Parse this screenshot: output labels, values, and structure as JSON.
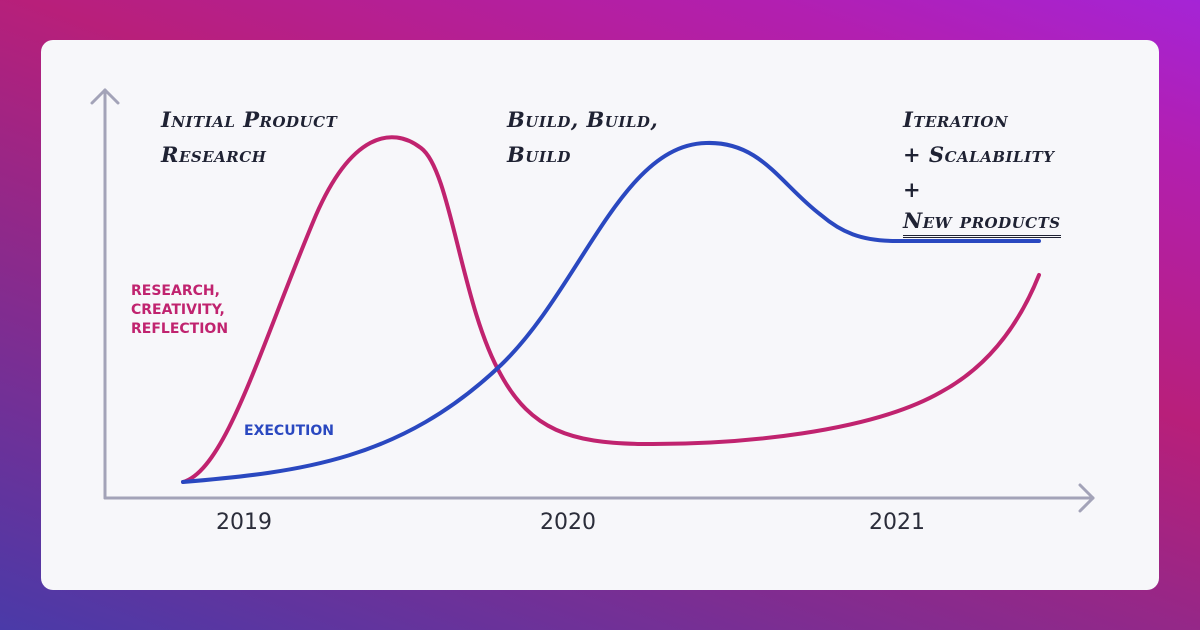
{
  "phases": {
    "initial": {
      "line1": "Initial Product",
      "line2": "Research"
    },
    "build": {
      "line1": "Build, Build,",
      "line2": "Build"
    },
    "iteration": {
      "line1": "Iteration",
      "line2": "+ Scalability",
      "line3_prefix": "+ ",
      "line3_underlined": "New products"
    }
  },
  "series": {
    "research": {
      "label_lines": [
        "RESEARCH,",
        "CREATIVITY,",
        "REFLECTION"
      ],
      "color": "#c0236f"
    },
    "execution": {
      "label": "EXECUTION",
      "color": "#2a48c0"
    }
  },
  "x_axis": {
    "years": [
      "2019",
      "2020",
      "2021"
    ]
  },
  "colors": {
    "axis": "#a3a3b8",
    "card_background": "#f7f7fa",
    "text": "#1f2233"
  }
}
